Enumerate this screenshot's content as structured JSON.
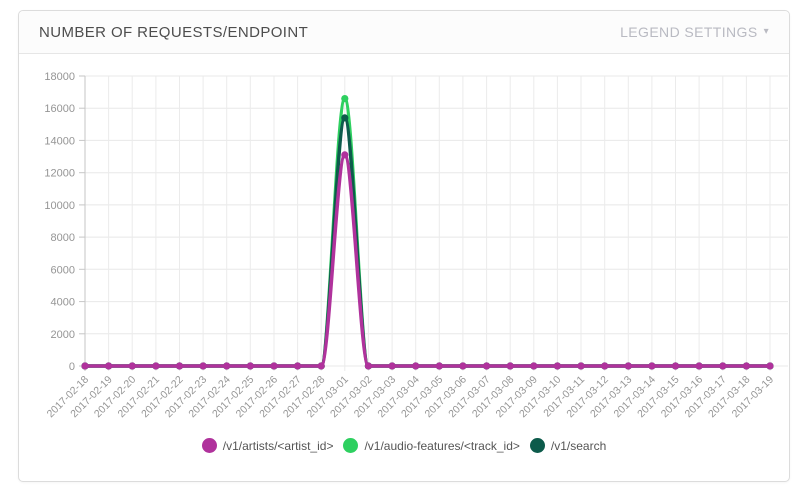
{
  "header": {
    "title": "NUMBER OF REQUESTS/ENDPOINT",
    "legend_settings_label": "LEGEND SETTINGS",
    "legend_settings_caret": "▾"
  },
  "colors": {
    "artists": "#b0329c",
    "audio_features": "#2ed060",
    "search": "#0d5b4b",
    "grid": "#e8e8e8",
    "axis_text": "#959595",
    "title_text": "#4d4d4d",
    "muted_control": "#b9bac2"
  },
  "chart_data": {
    "type": "line",
    "title": "NUMBER OF REQUESTS/ENDPOINT",
    "xlabel": "",
    "ylabel": "",
    "ylim": [
      0,
      18000
    ],
    "ytick_step": 2000,
    "grid": true,
    "legend_position": "bottom",
    "x": [
      "2017-02-18",
      "2017-02-19",
      "2017-02-20",
      "2017-02-21",
      "2017-02-22",
      "2017-02-23",
      "2017-02-24",
      "2017-02-25",
      "2017-02-26",
      "2017-02-27",
      "2017-02-28",
      "2017-03-01",
      "2017-03-02",
      "2017-03-03",
      "2017-03-04",
      "2017-03-05",
      "2017-03-06",
      "2017-03-07",
      "2017-03-08",
      "2017-03-09",
      "2017-03-10",
      "2017-03-11",
      "2017-03-12",
      "2017-03-13",
      "2017-03-14",
      "2017-03-15",
      "2017-03-16",
      "2017-03-17",
      "2017-03-18",
      "2017-03-19"
    ],
    "series": [
      {
        "name": "/v1/artists/<artist_id>",
        "color": "#b0329c",
        "values": [
          0,
          0,
          0,
          0,
          0,
          0,
          0,
          0,
          0,
          0,
          0,
          13100,
          0,
          0,
          0,
          0,
          0,
          0,
          0,
          0,
          0,
          0,
          0,
          0,
          0,
          0,
          0,
          0,
          0,
          0
        ]
      },
      {
        "name": "/v1/audio-features/<track_id>",
        "color": "#2ed060",
        "values": [
          0,
          0,
          0,
          0,
          0,
          0,
          0,
          0,
          0,
          0,
          0,
          16600,
          0,
          0,
          0,
          0,
          0,
          0,
          0,
          0,
          0,
          0,
          0,
          0,
          0,
          0,
          0,
          0,
          0,
          0
        ]
      },
      {
        "name": "/v1/search",
        "color": "#0d5b4b",
        "values": [
          0,
          0,
          0,
          0,
          0,
          0,
          0,
          0,
          0,
          0,
          0,
          15400,
          0,
          0,
          0,
          0,
          0,
          0,
          0,
          0,
          0,
          0,
          0,
          0,
          0,
          0,
          0,
          0,
          0,
          0
        ]
      }
    ],
    "draw_order": [
      1,
      2,
      0
    ]
  }
}
